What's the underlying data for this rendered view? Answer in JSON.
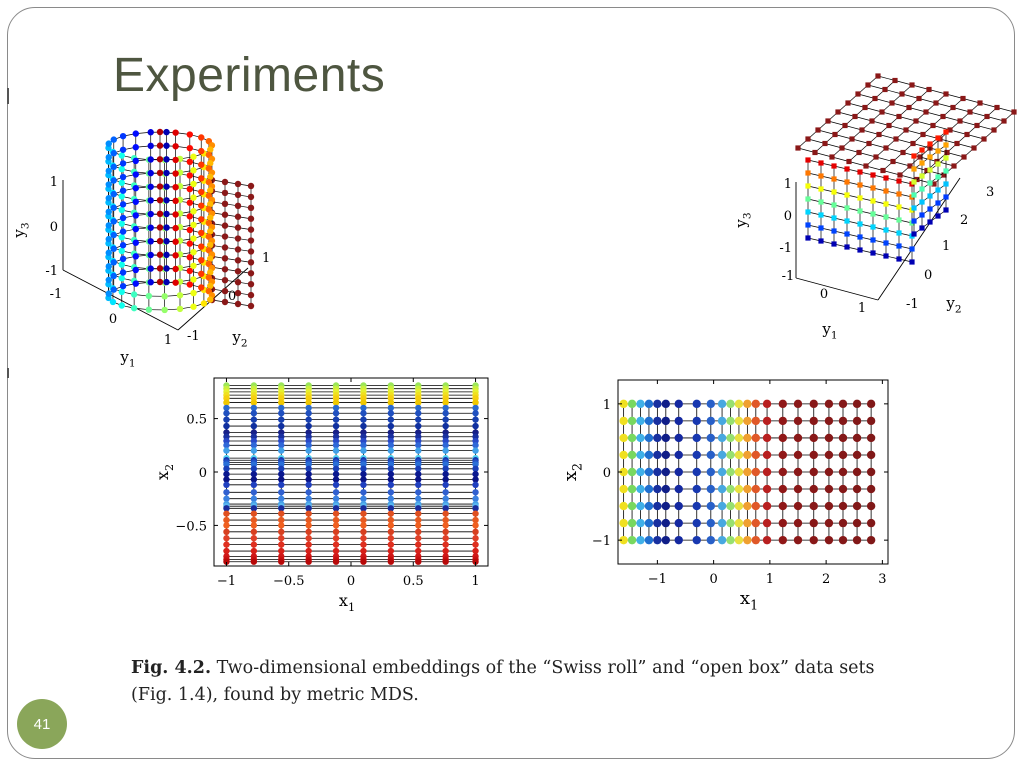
{
  "slide": {
    "title": "Experiments",
    "page_number": "41",
    "caption_label": "Fig. 4.2.",
    "caption_text": "Two-dimensional embeddings of the “Swiss roll” and “open box” data sets (Fig. 1.4), found by metric MDS."
  },
  "chart_data": [
    {
      "type": "scatter",
      "subtype": "3d-surface-mesh",
      "dataset": "Swiss roll",
      "xlabel": "y1",
      "ylabel": "y2",
      "zlabel": "y3",
      "xticks": [
        "-1",
        "0",
        "1"
      ],
      "yticks": [
        "-1",
        "0",
        "1"
      ],
      "zticks": [
        "1",
        "0",
        "-1"
      ]
    },
    {
      "type": "scatter",
      "subtype": "3d-surface-mesh",
      "dataset": "open box",
      "xlabel": "y1",
      "ylabel": "y2",
      "zlabel": "y3",
      "xticks": [
        "-1",
        "0",
        "1"
      ],
      "yticks": [
        "-1",
        "0",
        "1",
        "2",
        "3"
      ],
      "zticks": [
        "1",
        "0",
        "-1"
      ]
    },
    {
      "type": "scatter",
      "subtype": "grid-embedding",
      "dataset": "Swiss roll (MDS)",
      "xlabel": "x1",
      "ylabel": "x2",
      "xlim": [
        -1.1,
        1.1
      ],
      "ylim": [
        -0.88,
        0.88
      ],
      "xticks": [
        -1,
        -0.5,
        0,
        0.5,
        1
      ],
      "yticks": [
        0.5,
        0,
        -0.5
      ],
      "xtick_labels": [
        "−1",
        "−0.5",
        "0",
        "0.5",
        "1"
      ],
      "ytick_labels": [
        "0.5",
        "0",
        "−0.5"
      ],
      "columns_x": [
        -1,
        -0.78,
        -0.56,
        -0.34,
        -0.12,
        0.1,
        0.32,
        0.54,
        0.76,
        1
      ],
      "rows_y": [
        0.81,
        0.78,
        0.75,
        0.72,
        0.69,
        0.65,
        0.6,
        0.55,
        0.49,
        0.43,
        0.37,
        0.33,
        0.29,
        0.25,
        0.2,
        0.13,
        0.11,
        0.09,
        0.07,
        0.03,
        -0.02,
        -0.07,
        -0.12,
        -0.19,
        -0.25,
        -0.3,
        -0.32,
        -0.34,
        -0.39,
        -0.45,
        -0.5,
        -0.56,
        -0.62,
        -0.68,
        -0.74,
        -0.79,
        -0.82,
        -0.84
      ],
      "row_colors": [
        "#9be65a",
        "#c8f040",
        "#e6f030",
        "#f0e020",
        "#f5d010",
        "#f0c800",
        "#2a6ad0",
        "#2050c0",
        "#1840b0",
        "#1030a0",
        "#182088",
        "#1a30a0",
        "#2848c8",
        "#3068d8",
        "#40a0e8",
        "#50d0f0",
        "#1838b0",
        "#2050c8",
        "#2a70d8",
        "#1a40b8",
        "#0a1890",
        "#0a1488",
        "#2040c0",
        "#3060d0",
        "#3a80e0",
        "#48a0e8",
        "#58b8f0",
        "#1a2c9c",
        "#e05020",
        "#e85a20",
        "#f06020",
        "#d84020",
        "#e04028",
        "#e03020",
        "#d82018",
        "#d01818",
        "#c81010",
        "#b80808"
      ]
    },
    {
      "type": "scatter",
      "subtype": "grid-embedding",
      "dataset": "open box (MDS)",
      "xlabel": "x1",
      "ylabel": "x2",
      "xlim": [
        -1.7,
        3.1
      ],
      "ylim": [
        -1.35,
        1.35
      ],
      "xticks": [
        -1,
        0,
        1,
        2,
        3
      ],
      "yticks": [
        1,
        0,
        -1
      ],
      "xtick_labels": [
        "−1",
        "0",
        "1",
        "2",
        "3"
      ],
      "ytick_labels": [
        "1",
        "0",
        "−1"
      ],
      "columns_x": [
        -1.6,
        -1.45,
        -1.3,
        -1.15,
        -1.0,
        -0.85,
        -0.62,
        -0.3,
        -0.05,
        0.15,
        0.3,
        0.45,
        0.6,
        0.75,
        0.95,
        1.23,
        1.5,
        1.78,
        2.05,
        2.3,
        2.55,
        2.8
      ],
      "column_colors": [
        "#f0e020",
        "#78d860",
        "#40b0e8",
        "#2070d0",
        "#1830a0",
        "#101e88",
        "#1428a0",
        "#1838b0",
        "#2860c8",
        "#48a8e0",
        "#98e070",
        "#e8e040",
        "#f0a030",
        "#e05828",
        "#b82020",
        "#901818",
        "#8a1818",
        "#881818",
        "#861818",
        "#841818",
        "#821818",
        "#801818"
      ],
      "rows_y": [
        1.0,
        0.75,
        0.5,
        0.25,
        0.0,
        -0.25,
        -0.5,
        -0.75,
        -1.0
      ]
    }
  ]
}
